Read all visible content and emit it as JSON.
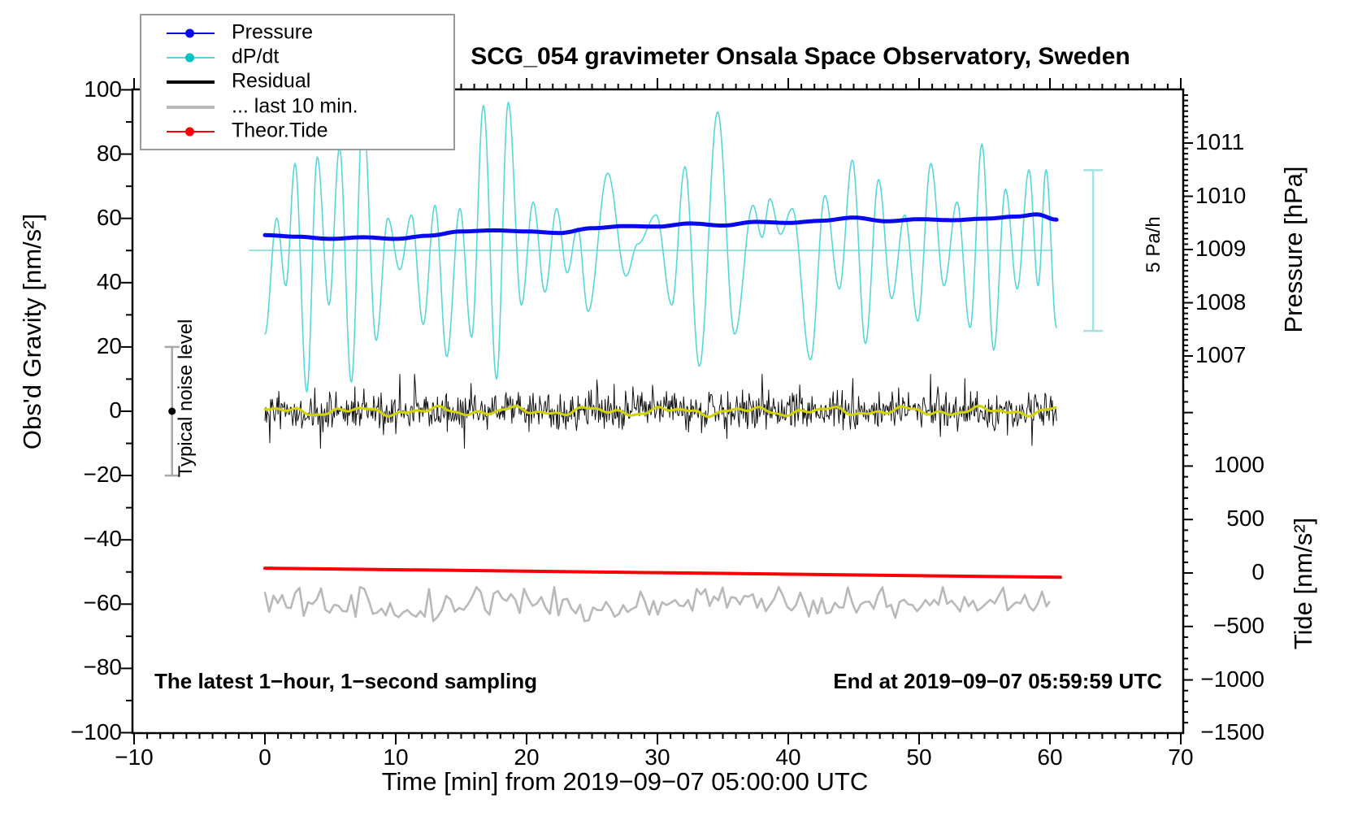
{
  "title": "SCG_054 gravimeter Onsala Space Observatory, Sweden",
  "annotations": {
    "sampling_note": "The latest 1−hour, 1−second sampling",
    "end_time_note": "End at 2019−09−07 05:59:59 UTC",
    "noise_level_label": "Typical noise level",
    "scale_bar_label": "5 Pa/h"
  },
  "axes": {
    "x": {
      "label": "Time [min] from 2019−09−07 05:00:00 UTC",
      "range": [
        -10,
        70
      ],
      "major_tick_step": 10,
      "minor_tick_step": 1,
      "tick_values": [
        -10,
        0,
        10,
        20,
        30,
        40,
        50,
        60,
        70
      ]
    },
    "y_left": {
      "label": "Obs'd Gravity [nm/s²]",
      "range": [
        -100,
        100
      ],
      "major_tick_step": 20,
      "minor_tick_step": 10,
      "tick_values": [
        100,
        80,
        60,
        40,
        20,
        0,
        -20,
        -40,
        -60,
        -80,
        -100
      ]
    },
    "y_right_pressure": {
      "label": "Pressure [hPa]",
      "major_tick_step": 1,
      "minor_tick_step": 0.1,
      "tick_values": [
        1011,
        1010,
        1009,
        1008,
        1007
      ]
    },
    "y_right_tide": {
      "label": "Tide [nm/s²]",
      "major_tick_step": 500,
      "minor_tick_step": 100,
      "tick_values": [
        1000,
        500,
        0,
        -500,
        -1000,
        -1500
      ]
    }
  },
  "legend": {
    "entries": [
      {
        "label": "Pressure",
        "color": "#0909ef",
        "style": "thin-line-dot"
      },
      {
        "label": "dP/dt",
        "color": "#00c3c3",
        "line_color": "#57d7d7",
        "style": "thin-line-dot"
      },
      {
        "label": "Residual",
        "color": "#000000",
        "style": "thick-line"
      },
      {
        "label": "... last 10 min.",
        "color": "#b9b9b9",
        "style": "thick-line"
      },
      {
        "label": "Theor.Tide",
        "color": "#fb0006",
        "style": "thin-line-dot"
      }
    ]
  },
  "chart_data": {
    "type": "line",
    "x_unit": "minutes from 2019-09-07 05:00:00 UTC",
    "grid": false,
    "series": [
      {
        "name": "Pressure",
        "axis": "pressure_hPa",
        "color": "#0909ef",
        "width": 5,
        "points_t": [
          0,
          2.5,
          5,
          7.5,
          10,
          12.5,
          15,
          17.5,
          20,
          22.5,
          25,
          27.5,
          30,
          32.5,
          35,
          37.5,
          40,
          42.5,
          45,
          47.5,
          50,
          52.5,
          55,
          57.5,
          59,
          60.5
        ],
        "points_hPa": [
          1009.27,
          1009.24,
          1009.2,
          1009.23,
          1009.2,
          1009.26,
          1009.34,
          1009.36,
          1009.34,
          1009.31,
          1009.4,
          1009.44,
          1009.43,
          1009.49,
          1009.45,
          1009.52,
          1009.5,
          1009.54,
          1009.6,
          1009.53,
          1009.57,
          1009.55,
          1009.58,
          1009.62,
          1009.66,
          1009.56
        ]
      },
      {
        "name": "dP/dt",
        "axis": "Pa_per_h",
        "color": "#57d7d7",
        "width": 1.6,
        "zero_level_gravity_units": 50,
        "scale_gravity_units_per_Pa_per_h": 10,
        "zero_line_t": [
          -1.2,
          60.2
        ],
        "extremes_t_value": [
          [
            0,
            -2.6
          ],
          [
            0.9,
            1.0
          ],
          [
            1.6,
            -1.1
          ],
          [
            2.3,
            2.7
          ],
          [
            3.2,
            -4.4
          ],
          [
            4.0,
            2.9
          ],
          [
            4.9,
            -1.7
          ],
          [
            5.7,
            3.2
          ],
          [
            6.6,
            -4.1
          ],
          [
            7.5,
            4.3
          ],
          [
            8.5,
            -2.8
          ],
          [
            9.4,
            1.0
          ],
          [
            10.3,
            -0.6
          ],
          [
            11.2,
            1.1
          ],
          [
            12.1,
            -2.3
          ],
          [
            13.0,
            1.4
          ],
          [
            13.9,
            -3.3
          ],
          [
            14.9,
            1.3
          ],
          [
            15.8,
            -2.7
          ],
          [
            16.7,
            4.5
          ],
          [
            17.7,
            -4.0
          ],
          [
            18.6,
            4.6
          ],
          [
            19.6,
            -1.7
          ],
          [
            20.5,
            1.5
          ],
          [
            21.4,
            -1.3
          ],
          [
            22.3,
            1.3
          ],
          [
            23.1,
            -0.7
          ],
          [
            23.9,
            0.7
          ],
          [
            24.7,
            -1.9
          ],
          [
            26.2,
            2.4
          ],
          [
            27.6,
            -0.8
          ],
          [
            28.5,
            0.2
          ],
          [
            29.9,
            1.1
          ],
          [
            31.1,
            -1.7
          ],
          [
            32.1,
            2.6
          ],
          [
            33.2,
            -3.6
          ],
          [
            34.6,
            4.3
          ],
          [
            35.9,
            -2.6
          ],
          [
            37.3,
            1.4
          ],
          [
            38.0,
            0.4
          ],
          [
            38.6,
            1.6
          ],
          [
            39.4,
            0.5
          ],
          [
            40.3,
            1.3
          ],
          [
            41.7,
            -3.4
          ],
          [
            42.8,
            1.7
          ],
          [
            43.9,
            -1.2
          ],
          [
            44.9,
            2.8
          ],
          [
            45.9,
            -2.9
          ],
          [
            46.9,
            2.2
          ],
          [
            47.9,
            -1.5
          ],
          [
            48.9,
            1.1
          ],
          [
            49.9,
            -2.2
          ],
          [
            50.9,
            2.7
          ],
          [
            51.9,
            -1.1
          ],
          [
            52.9,
            1.5
          ],
          [
            53.9,
            -2.4
          ],
          [
            54.8,
            3.3
          ],
          [
            55.7,
            -3.1
          ],
          [
            56.6,
            1.9
          ],
          [
            57.5,
            -1.2
          ],
          [
            58.4,
            2.5
          ],
          [
            59.1,
            -1.1
          ],
          [
            59.7,
            2.5
          ],
          [
            60.5,
            -2.4
          ]
        ]
      },
      {
        "name": "Residual",
        "axis": "gravity_nm_s2",
        "color": "#111111",
        "width": 1,
        "t_range": [
          0,
          60.5
        ],
        "mean": 0,
        "noise_sigma": 3.0,
        "spike_probability": 0.06,
        "spike_sigma": 6.5,
        "clamp": 11.5,
        "sample_step_min": 0.0625,
        "seed": 42
      },
      {
        "name": "Residual smoothed (unlabeled yellow)",
        "axis": "gravity_nm_s2",
        "color": "#d3d300",
        "width": 3,
        "t_range": [
          0,
          60.5
        ],
        "mean": 0,
        "sine_components_amp_freq_phase": [
          [
            0.9,
            1.05,
            0.5
          ],
          [
            0.5,
            2.3,
            2.0
          ],
          [
            0.35,
            4.1,
            4.0
          ]
        ]
      },
      {
        "name": "... last 10 min.",
        "axis": "gravity_nm_s2",
        "color": "#b9b9b9",
        "width": 2.6,
        "t_range": [
          0,
          60
        ],
        "mean": -60,
        "noise_sigma": 2.8,
        "clamp": 5.3,
        "control_step_min": 0.33,
        "sample_step_min": 0.11,
        "seed": 77
      },
      {
        "name": "Theor.Tide",
        "axis": "tide_nm_s2",
        "color": "#fb0006",
        "width": 4,
        "points_t": [
          0,
          60.8
        ],
        "points_tide": [
          45,
          -40
        ]
      }
    ],
    "noise_level_marker": {
      "t": -7.1,
      "gravity_span": [
        -20,
        20
      ],
      "dot_at": 0,
      "bar_color": "#a9a9a9",
      "dot_color": "#000000"
    },
    "dpdt_scale_bar": {
      "t": 63.3,
      "gravity_span": [
        25,
        75
      ],
      "represents": "5 Pa/h",
      "color": "#a5e0e5"
    }
  }
}
